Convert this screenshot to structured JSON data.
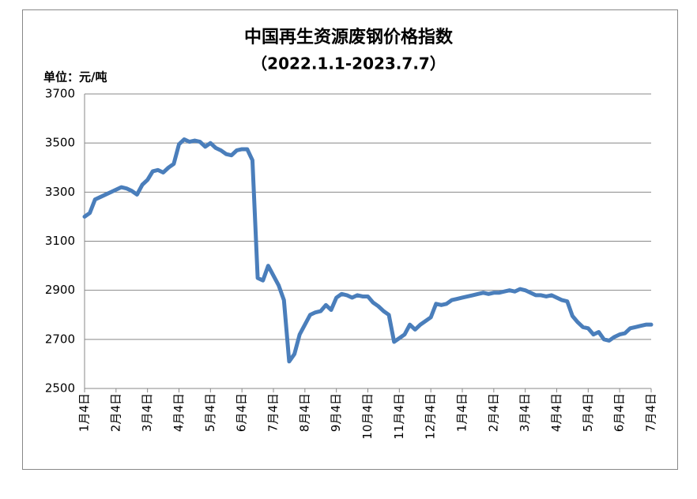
{
  "chart_data": {
    "type": "line",
    "title": "中国再生资源废钢价格指数",
    "subtitle": "（2022.1.1-2023.7.7）",
    "y_label": "单位：元/吨",
    "categories": [
      "1月4日",
      null,
      null,
      null,
      null,
      null,
      "2月4日",
      null,
      null,
      null,
      null,
      null,
      "3月4日",
      null,
      null,
      null,
      null,
      null,
      "4月4日",
      null,
      null,
      null,
      null,
      null,
      "5月4日",
      null,
      null,
      null,
      null,
      null,
      "6月4日",
      null,
      null,
      null,
      null,
      null,
      "7月4日",
      null,
      null,
      null,
      null,
      null,
      "8月4日",
      null,
      null,
      null,
      null,
      null,
      "9月4日",
      null,
      null,
      null,
      null,
      null,
      "10月4日",
      null,
      null,
      null,
      null,
      null,
      "11月4日",
      null,
      null,
      null,
      null,
      null,
      "12月4日",
      null,
      null,
      null,
      null,
      null,
      "1月4日",
      null,
      null,
      null,
      null,
      null,
      "2月4日",
      null,
      null,
      null,
      null,
      null,
      "3月4日",
      null,
      null,
      null,
      null,
      null,
      "4月4日",
      null,
      null,
      null,
      null,
      null,
      "5月4日",
      null,
      null,
      null,
      null,
      null,
      "6月4日",
      null,
      null,
      null,
      null,
      null,
      "7月4日"
    ],
    "series": [
      {
        "name": "废钢价格指数",
        "color": "#4a7ebb",
        "values": [
          3200,
          3215,
          3270,
          3280,
          3290,
          3300,
          3310,
          3320,
          3315,
          3305,
          3290,
          3330,
          3350,
          3385,
          3390,
          3380,
          3400,
          3415,
          3495,
          3515,
          3505,
          3510,
          3505,
          3485,
          3500,
          3480,
          3470,
          3455,
          3450,
          3470,
          3475,
          3475,
          3430,
          2950,
          2940,
          3000,
          2960,
          2920,
          2860,
          2610,
          2640,
          2720,
          2760,
          2800,
          2810,
          2815,
          2840,
          2820,
          2870,
          2885,
          2880,
          2870,
          2880,
          2875,
          2875,
          2850,
          2835,
          2815,
          2800,
          2690,
          2705,
          2720,
          2760,
          2740,
          2760,
          2775,
          2790,
          2845,
          2840,
          2845,
          2860,
          2865,
          2870,
          2875,
          2880,
          2885,
          2890,
          2885,
          2890,
          2890,
          2895,
          2900,
          2895,
          2905,
          2900,
          2890,
          2880,
          2880,
          2875,
          2880,
          2870,
          2860,
          2855,
          2795,
          2770,
          2750,
          2745,
          2720,
          2730,
          2700,
          2695,
          2710,
          2720,
          2725,
          2745,
          2750,
          2755,
          2760,
          2760
        ]
      }
    ],
    "ylim": [
      2500,
      3700
    ],
    "yticks": [
      2500,
      2700,
      2900,
      3100,
      3300,
      3500,
      3700
    ],
    "grid": true
  }
}
